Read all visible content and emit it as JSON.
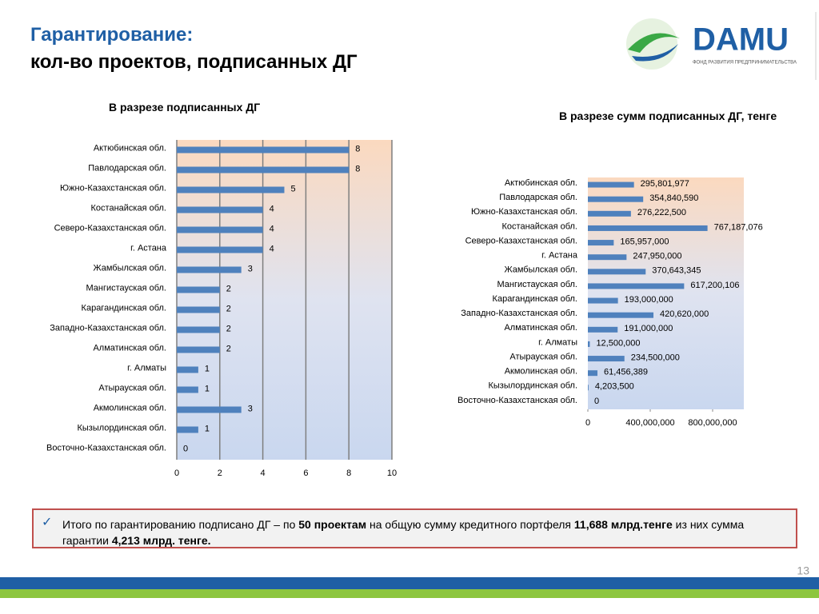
{
  "header": {
    "title_line1": "Гарантирование:",
    "title_line2": "кол-во проектов, подписанных ДГ"
  },
  "logo": {
    "name": "DAMU",
    "tagline": "ФОНД РАЗВИТИЯ ПРЕДПРИНИМАТЕЛЬСТВА"
  },
  "chart_data": [
    {
      "type": "bar",
      "orientation": "horizontal",
      "title": "В разрезе подписанных ДГ",
      "categories": [
        "Актюбинская обл.",
        "Павлодарская обл.",
        "Южно-Казахстанская обл.",
        "Костанайская обл.",
        "Северо-Казахстанская обл.",
        "г. Астана",
        "Жамбылская обл.",
        "Мангистауская обл.",
        "Карагандинская обл.",
        "Западно-Казахстанская обл.",
        "Алматинская обл.",
        "г. Алматы",
        "Атырауская обл.",
        "Акмолинская обл.",
        "Кызылординская обл.",
        "Восточно-Казахстанская обл."
      ],
      "values": [
        8,
        8,
        5,
        4,
        4,
        4,
        3,
        2,
        2,
        2,
        2,
        1,
        1,
        3,
        1,
        0
      ],
      "color": "#4f81bd",
      "xlim": [
        0,
        10
      ],
      "xticks": [
        0,
        2,
        4,
        6,
        8,
        10
      ],
      "grid": true
    },
    {
      "type": "bar",
      "orientation": "horizontal",
      "title": "В разрезе сумм подписанных ДГ, тенге",
      "categories": [
        "Актюбинская обл.",
        "Павлодарская обл.",
        "Южно-Казахстанская обл.",
        "Костанайская обл.",
        "Северо-Казахстанская обл.",
        "г. Астана",
        "Жамбылская обл.",
        "Мангистауская обл.",
        "Карагандинская обл.",
        "Западно-Казахстанская обл.",
        "Алматинская обл.",
        "г. Алматы",
        "Атырауская обл.",
        "Акмолинская обл.",
        "Кызылординская обл.",
        "Восточно-Казахстанская обл."
      ],
      "values": [
        295801977,
        354840590,
        276222500,
        767187076,
        165957000,
        247950000,
        370643345,
        617200106,
        193000000,
        420620000,
        191000000,
        12500000,
        234500000,
        61456389,
        4203500,
        0
      ],
      "value_labels": [
        "295,801,977",
        "354,840,590",
        "276,222,500",
        "767,187,076",
        "165,957,000",
        "247,950,000",
        "370,643,345",
        "617,200,106",
        "193,000,000",
        "420,620,000",
        "191,000,000",
        "12,500,000",
        "234,500,000",
        "61,456,389",
        "4,203,500",
        "0"
      ],
      "color": "#4f81bd",
      "xlim": [
        0,
        1000000000
      ],
      "xticks": [
        0,
        {
          "value": 400000000,
          "label": "400,000,000"
        },
        {
          "value": 800000000,
          "label": "800,000,000"
        }
      ],
      "grid": false
    }
  ],
  "note": {
    "parts": [
      "Итого по гарантированию подписано ДГ – по ",
      "50 проектам",
      " на общую сумму кредитного портфеля  ",
      "11,688 млрд.тенге",
      "  из них сумма гарантии ",
      "4,213 млрд. тенге."
    ]
  },
  "page_number": "13"
}
